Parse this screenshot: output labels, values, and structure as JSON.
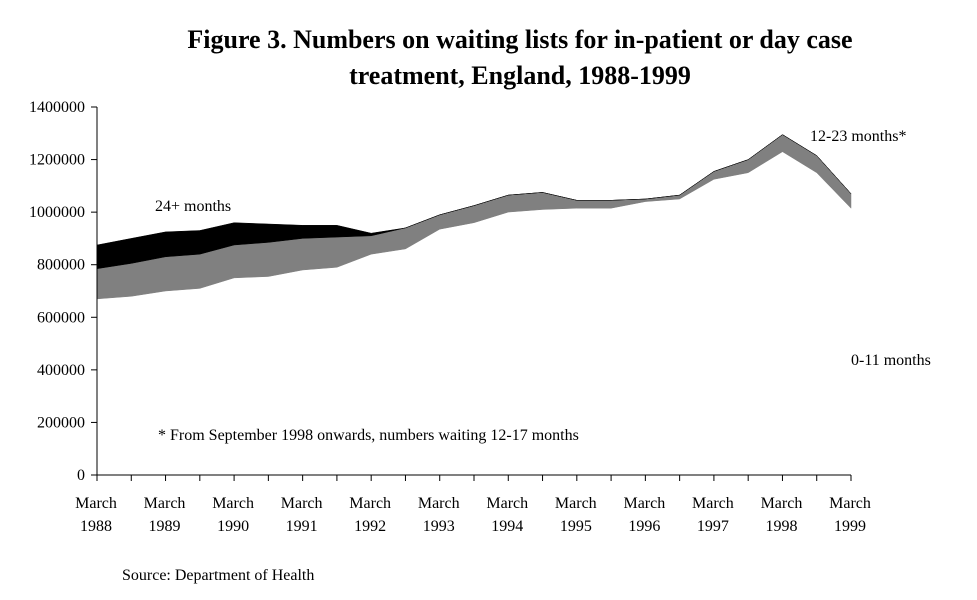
{
  "chart_data": {
    "type": "area",
    "title_lines": [
      "Figure 3. Numbers on waiting lists for in-patient or day case",
      "treatment, England, 1988-1999"
    ],
    "x_tick_labels": [
      [
        "March",
        "1988"
      ],
      [
        "March",
        "1989"
      ],
      [
        "March",
        "1990"
      ],
      [
        "March",
        "1991"
      ],
      [
        "March",
        "1992"
      ],
      [
        "March",
        "1993"
      ],
      [
        "March",
        "1994"
      ],
      [
        "March",
        "1995"
      ],
      [
        "March",
        "1996"
      ],
      [
        "March",
        "1997"
      ],
      [
        "March",
        "1998"
      ],
      [
        "March",
        "1999"
      ]
    ],
    "x_dates": [
      "1988-03",
      "1988-09",
      "1989-03",
      "1989-09",
      "1990-03",
      "1990-09",
      "1991-03",
      "1991-09",
      "1992-03",
      "1992-09",
      "1993-03",
      "1993-09",
      "1994-03",
      "1994-09",
      "1995-03",
      "1995-09",
      "1996-03",
      "1996-09",
      "1997-03",
      "1997-09",
      "1998-03",
      "1998-09",
      "1999-03"
    ],
    "ylim": [
      0,
      1400000
    ],
    "y_ticks": [
      0,
      200000,
      400000,
      600000,
      800000,
      1000000,
      1200000,
      1400000
    ],
    "y_tick_labels": [
      "0",
      "200000",
      "400000",
      "600000",
      "800000",
      "1000000",
      "1200000",
      "1400000"
    ],
    "stacked": true,
    "series": [
      {
        "name": "0-11 months",
        "color": "#ffffff",
        "values": [
          670000,
          680000,
          700000,
          710000,
          750000,
          755000,
          780000,
          790000,
          840000,
          860000,
          935000,
          960000,
          1000000,
          1010000,
          1015000,
          1015000,
          1040000,
          1050000,
          1125000,
          1150000,
          1230000,
          1150000,
          1015000
        ]
      },
      {
        "name": "12-23 months*",
        "color": "#808080",
        "values": [
          115000,
          125000,
          130000,
          130000,
          125000,
          130000,
          120000,
          115000,
          70000,
          80000,
          55000,
          65000,
          65000,
          65000,
          30000,
          30000,
          10000,
          15000,
          30000,
          50000,
          65000,
          65000,
          55000
        ]
      },
      {
        "name": "24+ months",
        "color": "#000000",
        "values": [
          90000,
          95000,
          95000,
          90000,
          85000,
          70000,
          50000,
          45000,
          10000,
          0,
          0,
          0,
          0,
          0,
          0,
          0,
          0,
          0,
          0,
          0,
          0,
          0,
          0
        ]
      }
    ],
    "series_labels": [
      "24+ months",
      "12-23 months*",
      "0-11 months"
    ],
    "annotation": "* From September 1998 onwards, numbers waiting 12-17 months",
    "source": "Source: Department of Health",
    "grid": false,
    "legend": "none"
  }
}
